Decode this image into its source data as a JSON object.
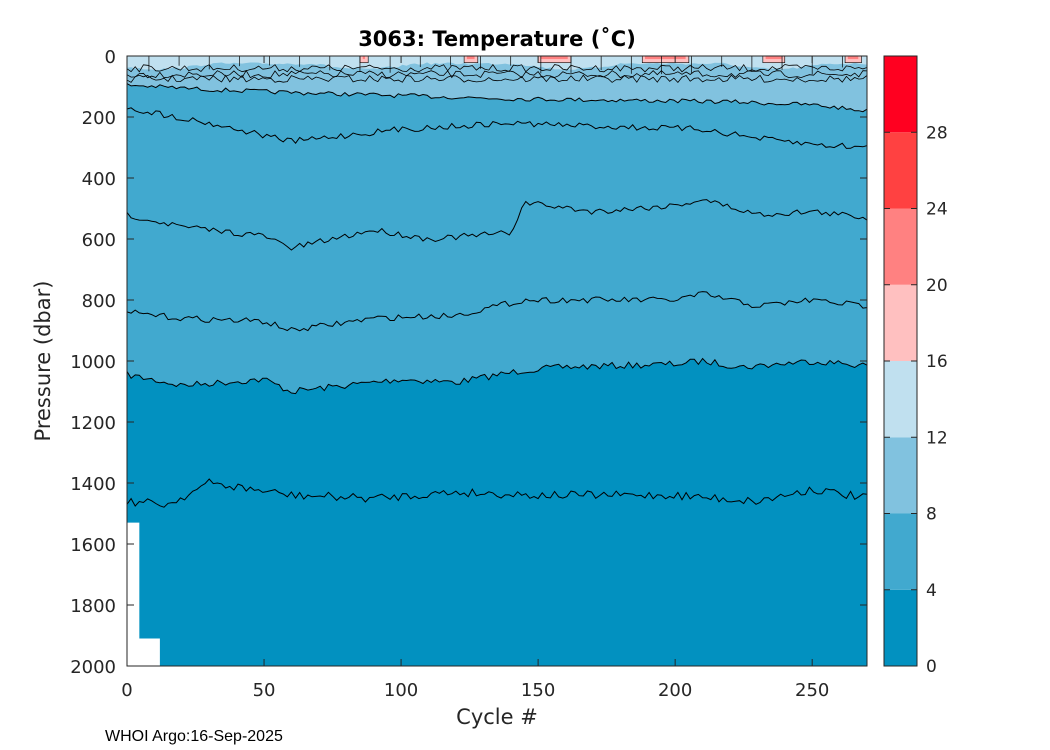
{
  "chart_data": {
    "type": "contour",
    "title": "3063:  Temperature (˚C)",
    "xlabel": "Cycle #",
    "ylabel": "Pressure (dbar)",
    "xlim": [
      0,
      270
    ],
    "ylim": [
      2000,
      0
    ],
    "xticks": [
      "0",
      "50",
      "100",
      "150",
      "200",
      "250"
    ],
    "xtick_values": [
      0,
      50,
      100,
      150,
      200,
      250
    ],
    "yticks": [
      "0",
      "200",
      "400",
      "600",
      "800",
      "1000",
      "1200",
      "1400",
      "1600",
      "1800",
      "2000"
    ],
    "ytick_values": [
      0,
      200,
      400,
      600,
      800,
      1000,
      1200,
      1400,
      1600,
      1800,
      2000
    ],
    "colorbar": {
      "min": 0,
      "max": 32,
      "tick_labels": [
        "0",
        "4",
        "8",
        "12",
        "16",
        "20",
        "24",
        "28"
      ],
      "tick_values": [
        0,
        4,
        8,
        12,
        16,
        20,
        24,
        28
      ],
      "levels": [
        {
          "range": [
            0,
            4
          ],
          "color": "#0291C0"
        },
        {
          "range": [
            4,
            8
          ],
          "color": "#41A9CF"
        },
        {
          "range": [
            8,
            12
          ],
          "color": "#81C2DF"
        },
        {
          "range": [
            12,
            16
          ],
          "color": "#C0E0EF"
        },
        {
          "range": [
            16,
            20
          ],
          "color": "#FFC0C0"
        },
        {
          "range": [
            20,
            24
          ],
          "color": "#FF8181"
        },
        {
          "range": [
            24,
            28
          ],
          "color": "#FF4141"
        },
        {
          "range": [
            28,
            32
          ],
          "color": "#FF0020"
        }
      ]
    },
    "contour_lines": [
      {
        "label": "~4 deg isotherm",
        "x": [
          0,
          20,
          50,
          60,
          100,
          120,
          145,
          160,
          200,
          210,
          225,
          250,
          270
        ],
        "y": [
          1045,
          1080,
          1060,
          1100,
          1060,
          1070,
          1030,
          1020,
          1010,
          1000,
          1020,
          1000,
          1015
        ]
      },
      {
        "label": "~3 deg isotherm",
        "x": [
          0,
          15,
          30,
          60,
          90,
          120,
          150,
          200,
          230,
          250,
          270
        ],
        "y": [
          1460,
          1470,
          1400,
          1440,
          1450,
          1430,
          1440,
          1440,
          1460,
          1420,
          1450
        ]
      },
      {
        "label": "~5 deg isotherm",
        "x": [
          0,
          20,
          50,
          60,
          90,
          120,
          145,
          160,
          200,
          210,
          230,
          250,
          270
        ],
        "y": [
          840,
          860,
          870,
          900,
          860,
          850,
          800,
          800,
          800,
          780,
          820,
          800,
          820
        ]
      },
      {
        "label": "~6 deg isotherm",
        "x": [
          0,
          20,
          50,
          60,
          90,
          110,
          140,
          145,
          170,
          200,
          210,
          230,
          250,
          270
        ],
        "y": [
          520,
          560,
          590,
          630,
          570,
          600,
          580,
          480,
          510,
          490,
          470,
          520,
          510,
          530
        ]
      },
      {
        "label": "~7 deg isotherm",
        "x": [
          0,
          30,
          60,
          100,
          140,
          170,
          210,
          230,
          250,
          270
        ],
        "y": [
          170,
          220,
          280,
          240,
          220,
          230,
          240,
          270,
          290,
          300
        ]
      },
      {
        "label": "~8 deg isotherm",
        "x": [
          0,
          30,
          60,
          100,
          140,
          180,
          220,
          250,
          270
        ],
        "y": [
          95,
          110,
          120,
          130,
          140,
          145,
          150,
          160,
          180
        ]
      }
    ],
    "no_data_region": {
      "x": [
        0,
        12
      ],
      "y": [
        1530,
        2000
      ]
    }
  },
  "footer": {
    "text": "WHOI Argo:16-Sep-2025"
  }
}
